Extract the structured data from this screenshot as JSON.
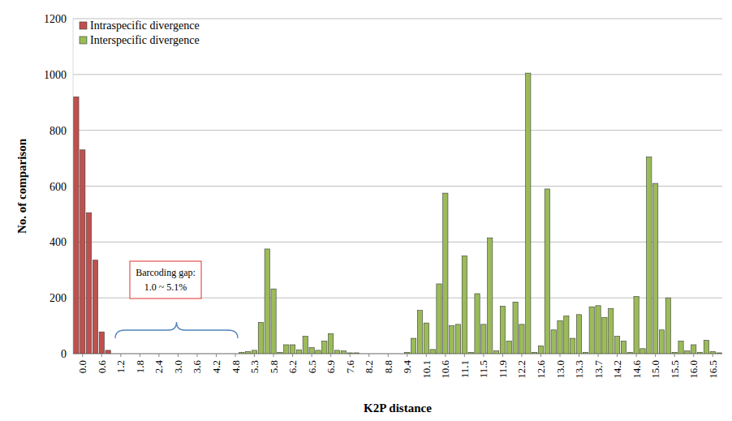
{
  "chart_data": {
    "type": "bar",
    "x_label": "K2P distance",
    "y_label": "No. of comparison",
    "annotations": [
      "Barcoding gap:",
      "1.0 ~ 5.1%"
    ],
    "categories": [
      null,
      "0.0",
      null,
      null,
      "0.6",
      null,
      null,
      "1.2",
      null,
      null,
      "1.8",
      null,
      null,
      "2.4",
      null,
      null,
      "3.0",
      null,
      null,
      "3.6",
      null,
      null,
      "4.2",
      null,
      null,
      "4.8",
      null,
      null,
      "5.3",
      null,
      null,
      "5.8",
      null,
      null,
      "6.2",
      null,
      null,
      "6.5",
      null,
      null,
      "6.9",
      null,
      null,
      "7.6",
      null,
      null,
      "8.2",
      null,
      null,
      "8.8",
      null,
      null,
      "9.4",
      null,
      null,
      "10.1",
      null,
      null,
      "10.6",
      null,
      null,
      "11.1",
      null,
      null,
      "11.5",
      null,
      null,
      "11.9",
      null,
      null,
      "12.2",
      null,
      null,
      "12.6",
      null,
      null,
      "13.0",
      null,
      null,
      "13.3",
      null,
      null,
      "13.7",
      null,
      null,
      "14.2",
      null,
      null,
      "14.6",
      null,
      null,
      "15.0",
      null,
      null,
      "15.5",
      null,
      null,
      "16.0",
      null,
      null,
      "16.5",
      null
    ],
    "series": [
      {
        "name": "Intraspecific divergence",
        "color": "#c0504d",
        "values": [
          920,
          730,
          505,
          335,
          78,
          12,
          0,
          0,
          0,
          0,
          0,
          0,
          0,
          0,
          0,
          0,
          0,
          0,
          0,
          0,
          0,
          0,
          0,
          0,
          0,
          0,
          0,
          0,
          0,
          0,
          0,
          0,
          0,
          0,
          0,
          0,
          0,
          0,
          0,
          0,
          0,
          0,
          0,
          0,
          0,
          0,
          0,
          0,
          0,
          0,
          0,
          0,
          0,
          0,
          0,
          0,
          0,
          0,
          0,
          0,
          0,
          0,
          0,
          0,
          0,
          0,
          0,
          0,
          0,
          0,
          0,
          0,
          0,
          0,
          0,
          0,
          0,
          0,
          0,
          0,
          0,
          0,
          0,
          0,
          0,
          0,
          0,
          0,
          0,
          0,
          0,
          0,
          0,
          0,
          0,
          0,
          0,
          0,
          0,
          0,
          0,
          0
        ]
      },
      {
        "name": "Interspecific divergence",
        "color": "#9bbb59",
        "values": [
          0,
          0,
          0,
          0,
          0,
          0,
          0,
          0,
          0,
          0,
          0,
          0,
          0,
          0,
          0,
          0,
          0,
          0,
          0,
          0,
          0,
          0,
          0,
          0,
          0,
          0,
          5,
          8,
          12,
          112,
          375,
          232,
          5,
          32,
          32,
          14,
          62,
          22,
          12,
          45,
          72,
          12,
          10,
          3,
          3,
          0,
          0,
          0,
          0,
          0,
          0,
          0,
          5,
          55,
          155,
          110,
          15,
          250,
          575,
          100,
          105,
          350,
          5,
          215,
          105,
          415,
          10,
          170,
          45,
          185,
          105,
          1005,
          5,
          28,
          590,
          85,
          118,
          135,
          55,
          140,
          5,
          168,
          172,
          130,
          162,
          62,
          45,
          5,
          205,
          18,
          705,
          610,
          85,
          200,
          5,
          45,
          10,
          32,
          5,
          48,
          8,
          3
        ]
      }
    ],
    "ylim": [
      0,
      1200
    ],
    "yticks": [
      0,
      200,
      400,
      600,
      800,
      1000,
      1200
    ],
    "grid": true,
    "legend": "top-left"
  }
}
